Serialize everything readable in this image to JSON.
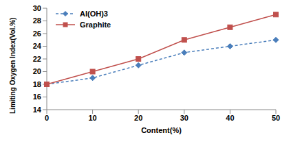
{
  "chart_data": {
    "type": "line",
    "x_label": "Content(%)",
    "y_label": "Limiting Oxygen Index(Vol.%)",
    "categories": [
      "0",
      "10",
      "20",
      "30",
      "40",
      "50"
    ],
    "series": [
      {
        "name": "Al(OH)3",
        "color": "#4a7ebb",
        "marker": "diamond",
        "line_style": "dashed",
        "values": [
          18,
          19,
          21,
          23,
          24,
          25
        ]
      },
      {
        "name": "Graphite",
        "color": "#c0504d",
        "marker": "square",
        "line_style": "solid",
        "values": [
          18,
          20,
          22,
          25,
          27,
          29
        ]
      }
    ],
    "ylim": [
      14,
      30
    ],
    "yticks": [
      14,
      16,
      18,
      20,
      22,
      24,
      26,
      28,
      30
    ],
    "grid": false,
    "legend": "upper left"
  }
}
